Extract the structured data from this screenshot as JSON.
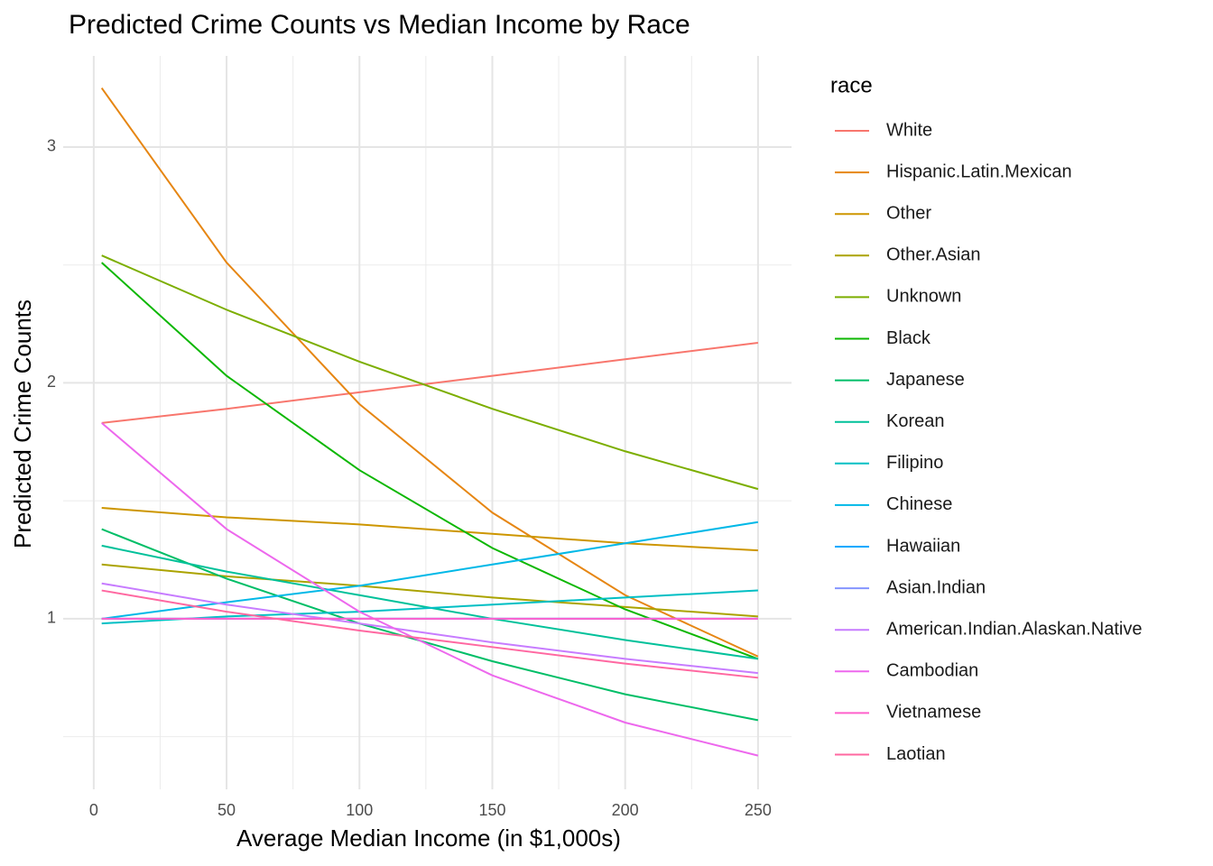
{
  "chart_data": {
    "type": "line",
    "title": "Predicted Crime Counts vs Median Income by Race",
    "x_label": "Average Median Income (in $1,000s)",
    "y_label": "Predicted Crime Counts",
    "legend_title": "race",
    "legend": "right",
    "grid": true,
    "x": [
      3,
      50,
      100,
      150,
      200,
      250
    ],
    "xlim": [
      -11.5,
      262.6
    ],
    "xticks": [
      0,
      50,
      100,
      150,
      200,
      250
    ],
    "xminorticks": [
      25,
      75,
      125,
      175,
      225
    ],
    "ylim": [
      0.277,
      3.386
    ],
    "yticks": [
      1,
      2,
      3
    ],
    "yminorticks": [
      0.5,
      1.5,
      2.5
    ],
    "series": [
      {
        "name": "White",
        "color": "#F8766D",
        "values": [
          1.83,
          1.89,
          1.96,
          2.03,
          2.1,
          2.17
        ]
      },
      {
        "name": "Hispanic.Latin.Mexican",
        "color": "#E68613",
        "values": [
          3.25,
          2.51,
          1.91,
          1.45,
          1.1,
          0.84
        ]
      },
      {
        "name": "Other",
        "color": "#CD9600",
        "values": [
          1.47,
          1.43,
          1.4,
          1.36,
          1.32,
          1.29
        ]
      },
      {
        "name": "Other.Asian",
        "color": "#ABA300",
        "values": [
          1.23,
          1.18,
          1.14,
          1.09,
          1.05,
          1.01
        ]
      },
      {
        "name": "Unknown",
        "color": "#7CAE00",
        "values": [
          2.54,
          2.31,
          2.09,
          1.89,
          1.71,
          1.55
        ]
      },
      {
        "name": "Black",
        "color": "#0CB702",
        "values": [
          2.51,
          2.03,
          1.63,
          1.3,
          1.04,
          0.83
        ]
      },
      {
        "name": "Japanese",
        "color": "#00BE67",
        "values": [
          1.38,
          1.17,
          0.98,
          0.82,
          0.68,
          0.57
        ]
      },
      {
        "name": "Korean",
        "color": "#00C19A",
        "values": [
          1.31,
          1.2,
          1.1,
          1.0,
          0.91,
          0.83
        ]
      },
      {
        "name": "Filipino",
        "color": "#00BFC4",
        "values": [
          0.98,
          1.01,
          1.03,
          1.06,
          1.09,
          1.12
        ]
      },
      {
        "name": "Chinese",
        "color": "#00B8E7",
        "values": [
          1.0,
          1.07,
          1.14,
          1.23,
          1.32,
          1.41
        ]
      },
      {
        "name": "Hawaiian",
        "color": "#00A9FF",
        "values": [
          1.0,
          1.0,
          1.0,
          1.0,
          1.0,
          1.0
        ]
      },
      {
        "name": "Asian.Indian",
        "color": "#8494FF",
        "values": [
          1.0,
          1.0,
          1.0,
          1.0,
          1.0,
          1.0
        ]
      },
      {
        "name": "American.Indian.Alaskan.Native",
        "color": "#C77CFF",
        "values": [
          1.15,
          1.06,
          0.98,
          0.9,
          0.83,
          0.77
        ]
      },
      {
        "name": "Cambodian",
        "color": "#ED68ED",
        "values": [
          1.83,
          1.38,
          1.03,
          0.76,
          0.56,
          0.42
        ]
      },
      {
        "name": "Vietnamese",
        "color": "#FF61CC",
        "values": [
          1.0,
          1.0,
          1.0,
          1.0,
          1.0,
          1.0
        ]
      },
      {
        "name": "Laotian",
        "color": "#FF68A1",
        "values": [
          1.12,
          1.03,
          0.95,
          0.88,
          0.81,
          0.75
        ]
      }
    ]
  }
}
